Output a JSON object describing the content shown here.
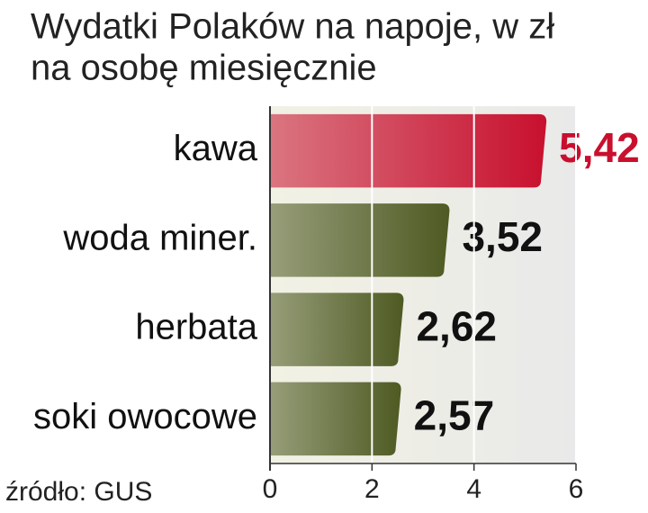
{
  "chart_data": {
    "type": "bar",
    "orientation": "horizontal",
    "title": "Wydatki Polaków na napoje, w zł",
    "subtitle": "na osobę miesięcznie",
    "source": "źródło: GUS",
    "categories": [
      "kawa",
      "woda miner.",
      "herbata",
      "soki owocowe"
    ],
    "values": [
      5.42,
      3.52,
      2.62,
      2.57
    ],
    "value_labels": [
      "5,42",
      "3,52",
      "2,62",
      "2,57"
    ],
    "colors": [
      "#c8102e",
      "#4e5a22",
      "#4e5a22",
      "#4e5a22"
    ],
    "value_label_colors": [
      "#c8102e",
      "#111111",
      "#111111",
      "#111111"
    ],
    "xlim": [
      0,
      6
    ],
    "xticks": [
      0,
      2,
      4,
      6
    ],
    "grid": true
  }
}
